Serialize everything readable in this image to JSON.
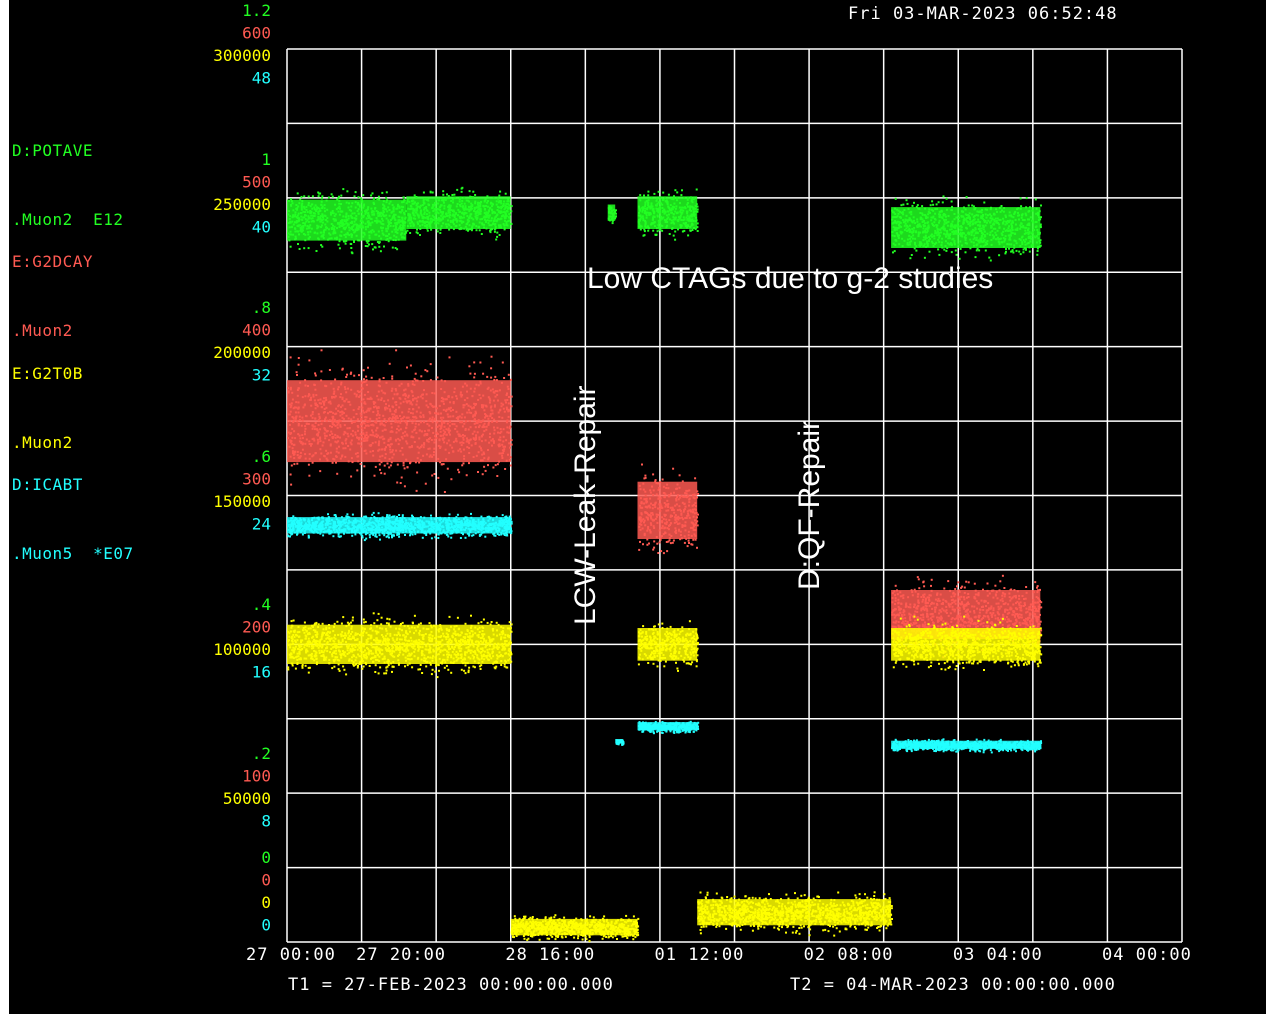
{
  "header": {
    "timestamp": "Fri 03-MAR-2023 06:52:48"
  },
  "colors": {
    "background": "#000000",
    "grid": "#ffffff",
    "potave": "#22ff22",
    "g2dcay": "#ff5a52",
    "g2t0b": "#ffff00",
    "icabt": "#22ffff"
  },
  "legend": [
    {
      "device": "D:POTAVE",
      "node": ".Muon2  E12",
      "color": "#22ff22"
    },
    {
      "device": "E:G2DCAY",
      "node": ".Muon2",
      "color": "#ff5a52"
    },
    {
      "device": "E:G2T0B",
      "node": ".Muon2",
      "color": "#ffff00"
    },
    {
      "device": "D:ICABT",
      "node": ".Muon5  *E07",
      "color": "#22ffff"
    }
  ],
  "footer": {
    "t1": "T1 = 27-FEB-2023 00:00:00.000",
    "t2": "T2 = 04-MAR-2023 00:00:00.000"
  },
  "annotations": {
    "ctags": "Low CTAGs due to g-2 studies",
    "lcw": "LCW-Leak-Repair",
    "qf": "D:QF-Repair"
  },
  "chart_data": {
    "type": "scatter",
    "title": "",
    "grid": true,
    "x": {
      "type": "time",
      "range": [
        "2023-02-27 00:00",
        "2023-03-04 00:00"
      ],
      "tick_labels": [
        "27 00:00",
        "27 20:00",
        "28 16:00",
        "01 12:00",
        "02 08:00",
        "03 04:00",
        "04 00:00"
      ],
      "ticks": [
        {
          "label": "27 00:00",
          "t": "2023-02-27 00:00"
        },
        {
          "label": "27 20:00",
          "t": "2023-02-27 20:00"
        },
        {
          "label": "28 16:00",
          "t": "2023-02-28 16:00"
        },
        {
          "label": "01 12:00",
          "t": "2023-03-01 12:00"
        },
        {
          "label": "02 08:00",
          "t": "2023-03-02 08:00"
        },
        {
          "label": "03 04:00",
          "t": "2023-03-03 04:00"
        },
        {
          "label": "04 00:00",
          "t": "2023-03-04 00:00"
        }
      ]
    },
    "y_axes": [
      {
        "series": "D:POTAVE",
        "color": "#22ff22",
        "range": [
          0,
          1.2
        ],
        "tick_labels": [
          "0",
          ".2",
          ".4",
          ".6",
          ".8",
          "1",
          "1.2"
        ]
      },
      {
        "series": "E:G2DCAY",
        "color": "#ff5a52",
        "range": [
          0,
          600
        ],
        "tick_labels": [
          "0",
          "100",
          "200",
          "300",
          "400",
          "500",
          "600"
        ]
      },
      {
        "series": "E:G2T0B",
        "color": "#ffff00",
        "range": [
          0,
          300000
        ],
        "tick_labels": [
          "0",
          "50000",
          "100000",
          "150000",
          "200000",
          "250000",
          "300000"
        ]
      },
      {
        "series": "D:ICABT",
        "color": "#22ffff",
        "range": [
          0,
          48
        ],
        "tick_labels": [
          "0",
          "8",
          "16",
          "24",
          "32",
          "40",
          "48"
        ]
      }
    ],
    "series": [
      {
        "name": "D:POTAVE",
        "color": "#22ff22",
        "segments": [
          {
            "start": "2023-02-27 00:00",
            "end": "2023-02-27 16:00",
            "mean": 0.97,
            "spread": 0.05
          },
          {
            "start": "2023-02-27 16:00",
            "end": "2023-02-28 06:00",
            "mean": 0.98,
            "spread": 0.04
          },
          {
            "start": "2023-02-28 19:00",
            "end": "2023-02-28 20:00",
            "mean": 0.98,
            "spread": 0.02
          },
          {
            "start": "2023-02-28 23:00",
            "end": "2023-03-01 07:00",
            "mean": 0.98,
            "spread": 0.04
          },
          {
            "start": "2023-03-02 09:00",
            "end": "2023-03-03 05:00",
            "mean": 0.96,
            "spread": 0.05
          }
        ]
      },
      {
        "name": "E:G2DCAY",
        "color": "#ff5a52",
        "segments": [
          {
            "start": "2023-02-27 00:00",
            "end": "2023-02-28 06:00",
            "mean": 350,
            "spread": 50
          },
          {
            "start": "2023-02-28 23:00",
            "end": "2023-03-01 07:00",
            "mean": 290,
            "spread": 35
          },
          {
            "start": "2023-03-02 09:00",
            "end": "2023-03-03 05:00",
            "mean": 220,
            "spread": 30
          }
        ]
      },
      {
        "name": "E:G2T0B",
        "color": "#ffff00",
        "segments": [
          {
            "start": "2023-02-27 00:00",
            "end": "2023-02-28 06:00",
            "mean": 100000,
            "spread": 12000
          },
          {
            "start": "2023-02-28 06:00",
            "end": "2023-02-28 23:00",
            "mean": 5000,
            "spread": 5000
          },
          {
            "start": "2023-02-28 23:00",
            "end": "2023-03-01 07:00",
            "mean": 100000,
            "spread": 10000
          },
          {
            "start": "2023-03-01 07:00",
            "end": "2023-03-02 09:00",
            "mean": 10000,
            "spread": 8000
          },
          {
            "start": "2023-03-02 09:00",
            "end": "2023-03-03 05:00",
            "mean": 100000,
            "spread": 10000
          }
        ]
      },
      {
        "name": "D:ICABT",
        "color": "#22ffff",
        "segments": [
          {
            "start": "2023-02-27 00:00",
            "end": "2023-02-28 06:00",
            "mean": 22.4,
            "spread": 0.8
          },
          {
            "start": "2023-02-28 20:00",
            "end": "2023-02-28 21:00",
            "mean": 10.8,
            "spread": 0.2
          },
          {
            "start": "2023-02-28 23:00",
            "end": "2023-03-01 07:00",
            "mean": 11.6,
            "spread": 0.4
          },
          {
            "start": "2023-03-02 09:00",
            "end": "2023-03-03 05:00",
            "mean": 10.6,
            "spread": 0.4
          }
        ]
      }
    ]
  }
}
